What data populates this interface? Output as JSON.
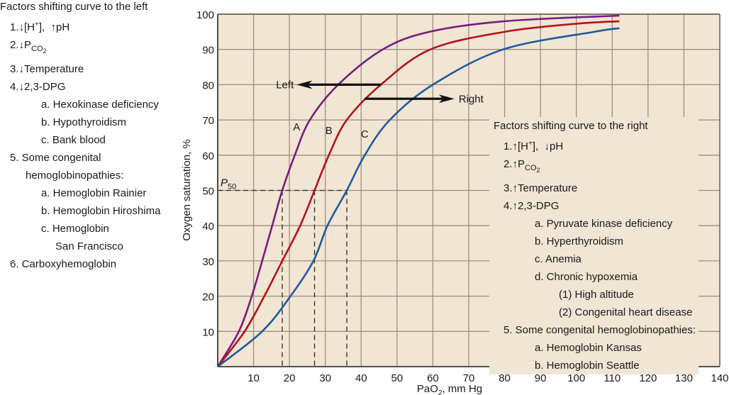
{
  "chart_data": {
    "type": "line",
    "title": "",
    "xlabel": "PaO2, mm Hg",
    "ylabel": "Oxygen saturation, %",
    "xlim": [
      0,
      140
    ],
    "ylim": [
      0,
      100
    ],
    "x_ticks": [
      "10",
      "20",
      "30",
      "40",
      "50",
      "60",
      "70",
      "80",
      "90",
      "100",
      "110",
      "120",
      "130",
      "140"
    ],
    "y_ticks": [
      "10",
      "20",
      "30",
      "40",
      "50",
      "60",
      "70",
      "80",
      "90",
      "100"
    ],
    "grid": true,
    "colors": {
      "background": "#f1e5d3",
      "grid": "#9c8f80",
      "axis": "#3a3a3a",
      "A": "#7b1a7e",
      "B": "#b3121b",
      "C": "#1f5a9e",
      "arrow": "#111111"
    },
    "series": [
      {
        "name": "A",
        "points": [
          [
            0,
            0
          ],
          [
            5.9,
            10
          ],
          [
            9.5,
            20
          ],
          [
            12.4,
            30
          ],
          [
            15.2,
            40
          ],
          [
            18,
            50
          ],
          [
            21.5,
            60
          ],
          [
            25.7,
            70
          ],
          [
            33.6,
            80
          ],
          [
            46,
            90
          ],
          [
            59,
            95
          ],
          [
            80,
            98
          ],
          [
            112,
            99.6
          ]
        ]
      },
      {
        "name": "B",
        "points": [
          [
            0,
            0
          ],
          [
            7.5,
            10
          ],
          [
            13,
            20
          ],
          [
            18,
            30
          ],
          [
            23,
            40
          ],
          [
            27,
            50
          ],
          [
            31,
            60
          ],
          [
            36,
            70
          ],
          [
            45.5,
            80
          ],
          [
            59.3,
            90
          ],
          [
            80,
            95
          ],
          [
            100,
            97.3
          ],
          [
            112,
            98
          ]
        ]
      },
      {
        "name": "C",
        "points": [
          [
            0,
            0
          ],
          [
            12.4,
            10
          ],
          [
            20.3,
            20
          ],
          [
            26.7,
            30
          ],
          [
            30.6,
            40
          ],
          [
            36,
            50
          ],
          [
            41,
            60
          ],
          [
            48,
            70
          ],
          [
            60,
            80
          ],
          [
            79.6,
            90
          ],
          [
            105,
            95
          ],
          [
            112,
            96
          ]
        ]
      }
    ],
    "curve_labels": [
      {
        "text": "A",
        "x": 22,
        "y": 67
      },
      {
        "text": "B",
        "x": 31,
        "y": 66
      },
      {
        "text": "C",
        "x": 41,
        "y": 65
      }
    ],
    "p50": {
      "label": "P",
      "sub": "50",
      "y": 50,
      "x_values": [
        18,
        27,
        36
      ]
    },
    "annotations": [
      {
        "text": "Left",
        "from": [
          45.5,
          80
        ],
        "to": [
          22,
          80
        ],
        "direction": "left"
      },
      {
        "text": "Right",
        "from": [
          41,
          76
        ],
        "to": [
          66,
          76
        ],
        "direction": "right"
      }
    ]
  },
  "left_list": {
    "title": "Factors shifting curve to the left",
    "items": [
      {
        "num": "1.",
        "arrow1": "↓",
        "text1": "[H",
        "sup": "+",
        "text2": "],  ",
        "arrow2": "↑",
        "text3": "pH"
      },
      {
        "num": "2.",
        "arrow": "↓",
        "text": "P",
        "sub": "CO",
        "subsub": "2"
      },
      {
        "num": "3.",
        "arrow": "↓",
        "text": "Temperature"
      },
      {
        "num": "4.",
        "arrow": "↓",
        "text": "2,3-DPG"
      },
      {
        "text": "a. Hexokinase deficiency"
      },
      {
        "text": "b. Hypothyroidism"
      },
      {
        "text": "c. Bank blood"
      },
      {
        "text": "5. Some congenital"
      },
      {
        "text": "hemoglobinopathies:"
      },
      {
        "text": "a. Hemoglobin Rainier"
      },
      {
        "text": "b. Hemoglobin Hiroshima"
      },
      {
        "text": "c. Hemoglobin"
      },
      {
        "text": "San Francisco"
      },
      {
        "text": "6. Carboxyhemoglobin"
      }
    ]
  },
  "right_list": {
    "title": "Factors shifting curve to the right",
    "items": [
      {
        "num": "1.",
        "arrow1": "↑",
        "text1": "[H",
        "sup": "+",
        "text2": "],  ",
        "arrow2": "↓",
        "text3": "pH"
      },
      {
        "num": "2.",
        "arrow": "↑",
        "text": "P",
        "sub": "CO",
        "subsub": "2"
      },
      {
        "num": "3.",
        "arrow": "↑",
        "text": "Temperature"
      },
      {
        "num": "4.",
        "arrow": "↑",
        "text": "2,3-DPG"
      },
      {
        "text": "a. Pyruvate kinase deficiency"
      },
      {
        "text": "b. Hyperthyroidism"
      },
      {
        "text": "c. Anemia"
      },
      {
        "text": "d. Chronic hypoxemia"
      },
      {
        "text": "(1) High altitude"
      },
      {
        "text": "(2) Congenital heart disease"
      },
      {
        "text": "5. Some congenital hemoglobinopathies:"
      },
      {
        "text": "a. Hemoglobin Kansas"
      },
      {
        "text": "b. Hemoglobin Seattle"
      }
    ]
  }
}
